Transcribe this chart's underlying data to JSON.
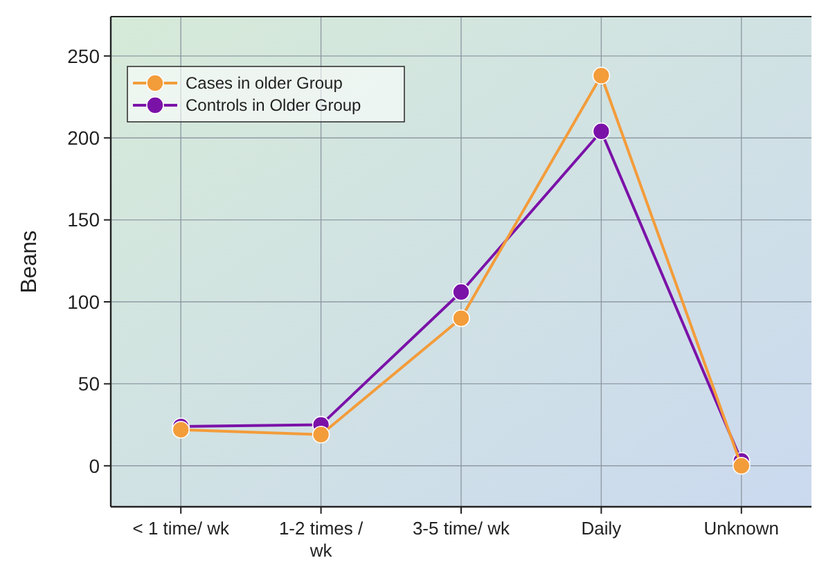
{
  "chart_data": {
    "type": "line",
    "ylabel": "Beans",
    "categories": [
      "< 1 time/ wk",
      "1-2 times / wk",
      "3-5 time/ wk",
      "Daily",
      "Unknown"
    ],
    "series": [
      {
        "name": "Cases in older Group",
        "color": "#f39c3a",
        "values": [
          22,
          19,
          90,
          238,
          0
        ]
      },
      {
        "name": "Controls in Older Group",
        "color": "#7b12a8",
        "values": [
          24,
          25,
          106,
          204,
          3
        ]
      }
    ],
    "ylim": [
      -25,
      274
    ],
    "yticks": [
      0,
      50,
      100,
      150,
      200,
      250
    ],
    "grid": true,
    "legend": "top left",
    "marker": "circle",
    "line_style": "solid"
  }
}
